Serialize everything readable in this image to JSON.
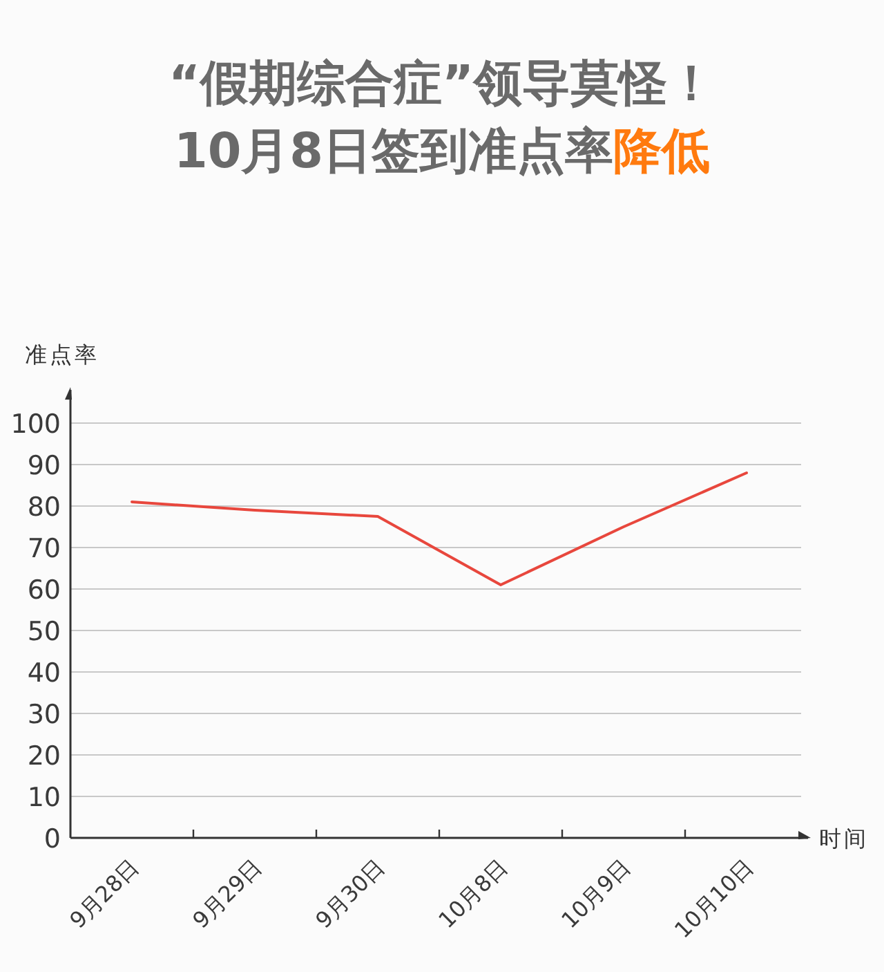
{
  "chart_data": {
    "type": "line",
    "title": "“假期综合症”领导莫怪！",
    "subtitle": "10月8日签到准点率降低",
    "ylabel": "准点率",
    "xlabel": "时间",
    "categories": [
      "9月28日",
      "9月29日",
      "9月30日",
      "10月8日",
      "10月9日",
      "10月10日"
    ],
    "series": [
      {
        "color": "#e8473d",
        "values": [
          81,
          79,
          77.5,
          61,
          75,
          88
        ]
      }
    ],
    "ylim": [
      0,
      108
    ],
    "yticks": [
      0,
      10,
      20,
      30,
      40,
      50,
      60,
      70,
      80,
      90,
      100
    ],
    "grid": "y",
    "line_style": "solid"
  }
}
